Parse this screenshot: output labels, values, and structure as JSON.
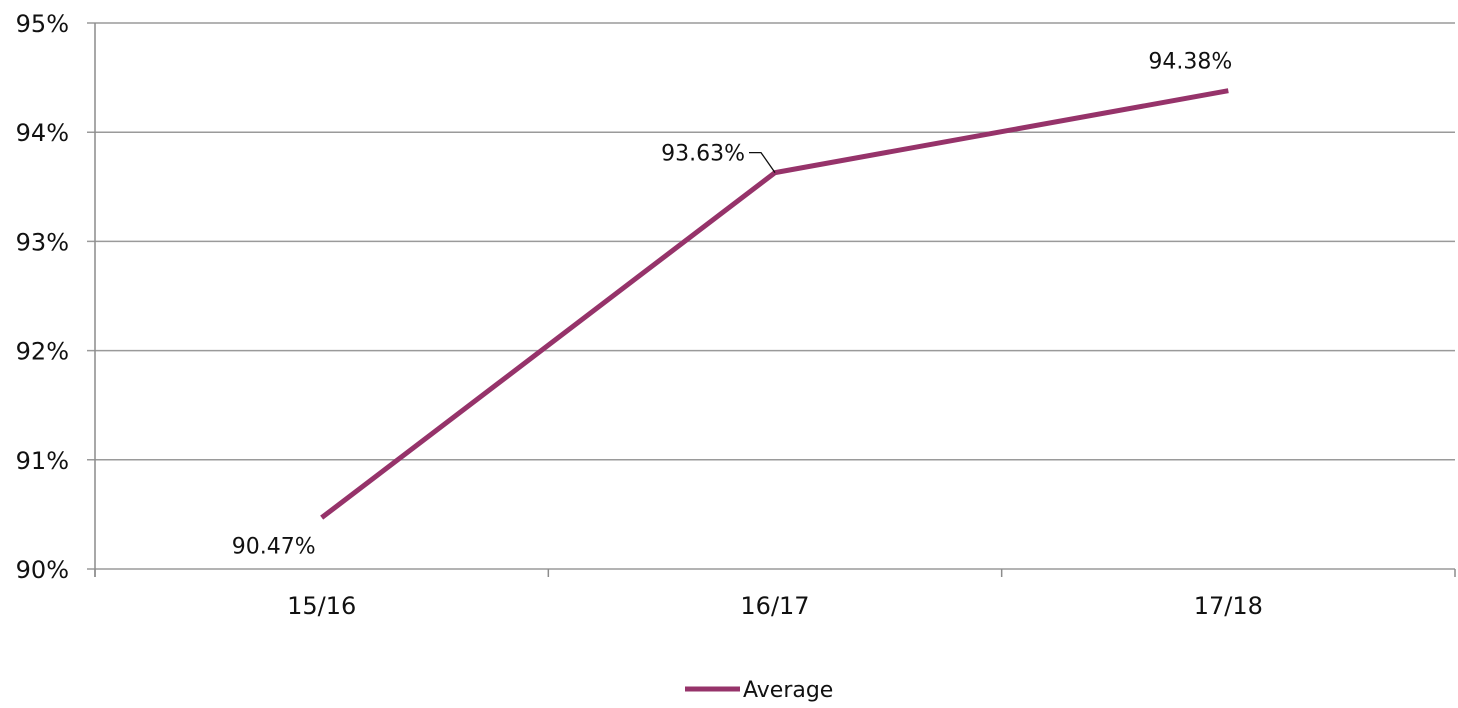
{
  "chart_data": {
    "type": "line",
    "title": "",
    "xlabel": "",
    "ylabel": "",
    "categories": [
      "15/16",
      "16/17",
      "17/18"
    ],
    "series": [
      {
        "name": "Average",
        "values": [
          90.47,
          93.63,
          94.38
        ],
        "value_labels": [
          "90.47%",
          "93.63%",
          "94.38%"
        ],
        "color": "#96336A"
      }
    ],
    "ylim": [
      90,
      95
    ],
    "yticks": [
      90,
      91,
      92,
      93,
      94,
      95
    ],
    "ytick_labels": [
      "90%",
      "91%",
      "92%",
      "93%",
      "94%",
      "95%"
    ],
    "grid": true,
    "legend": "bottom-center"
  },
  "colors": {
    "gridline": "#9a9a9a",
    "axis": "#8c8c8c",
    "series": "#96336A"
  }
}
